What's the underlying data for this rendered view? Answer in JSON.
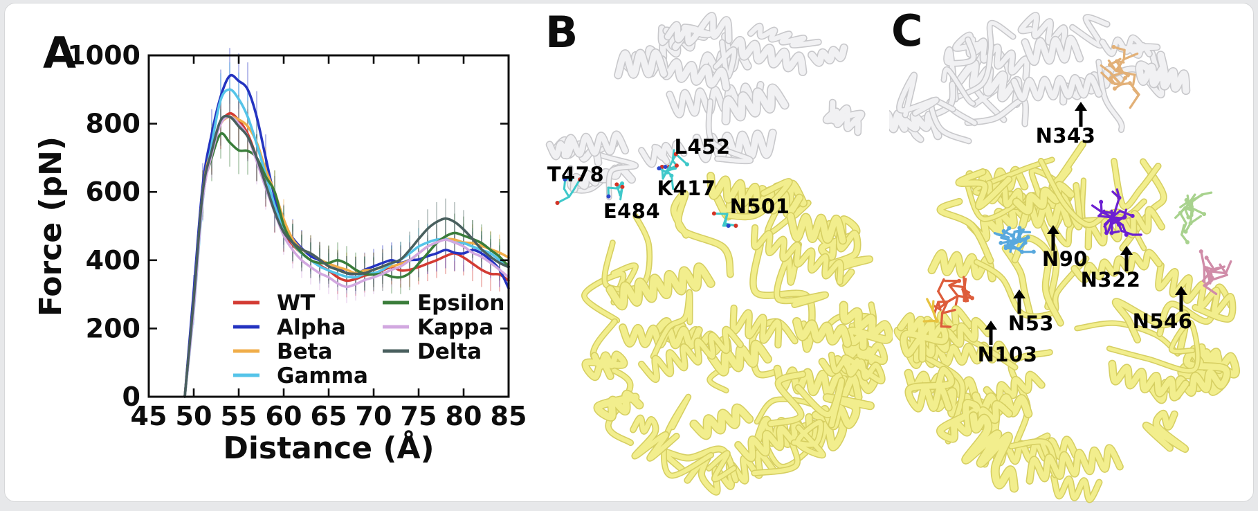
{
  "panel_a": {
    "label": "A"
  },
  "panel_b": {
    "label": "B",
    "residues": [
      "T478",
      "E484",
      "K417",
      "L452",
      "N501"
    ]
  },
  "panel_c": {
    "label": "C",
    "glycosylation_sites": [
      "N343",
      "N90",
      "N322",
      "N53",
      "N546",
      "N103"
    ]
  },
  "chart_data": {
    "type": "line",
    "title": "",
    "xlabel": "Distance (Å)",
    "ylabel": "Force (pN)",
    "xlim": [
      45,
      85
    ],
    "ylim": [
      0,
      1000
    ],
    "xticks": [
      45,
      50,
      55,
      60,
      65,
      70,
      75,
      80,
      85
    ],
    "yticks": [
      0,
      200,
      400,
      600,
      800,
      1000
    ],
    "grid": false,
    "error_bars_shown": true,
    "legend_position": "inside lower center, two columns, no frame",
    "legend_columns": [
      [
        "WT",
        "Alpha",
        "Beta",
        "Gamma"
      ],
      [
        "Epsilon",
        "Kappa",
        "Delta"
      ]
    ],
    "x": [
      49,
      50,
      51,
      52,
      53,
      54,
      55,
      56,
      57,
      58,
      59,
      60,
      61,
      62,
      63,
      64,
      65,
      66,
      67,
      68,
      69,
      70,
      71,
      72,
      73,
      74,
      75,
      76,
      77,
      78,
      79,
      80,
      81,
      82,
      83,
      84,
      85
    ],
    "series": [
      {
        "name": "WT",
        "color": "#d33b33",
        "values": [
          0,
          290,
          580,
          720,
          800,
          830,
          810,
          770,
          700,
          620,
          540,
          480,
          445,
          420,
          400,
          385,
          370,
          350,
          340,
          345,
          355,
          360,
          370,
          380,
          370,
          372,
          380,
          390,
          400,
          412,
          420,
          408,
          390,
          372,
          360,
          358,
          340
        ]
      },
      {
        "name": "Alpha",
        "color": "#2433c0",
        "values": [
          0,
          310,
          620,
          770,
          880,
          940,
          925,
          900,
          820,
          700,
          585,
          505,
          465,
          435,
          412,
          400,
          390,
          378,
          362,
          360,
          372,
          382,
          392,
          400,
          392,
          400,
          402,
          412,
          420,
          430,
          422,
          420,
          430,
          420,
          400,
          372,
          318
        ]
      },
      {
        "name": "Beta",
        "color": "#f0ad49",
        "values": [
          0,
          280,
          600,
          730,
          800,
          820,
          812,
          792,
          745,
          665,
          600,
          520,
          462,
          432,
          420,
          402,
          390,
          380,
          372,
          362,
          370,
          372,
          380,
          382,
          390,
          400,
          420,
          440,
          452,
          462,
          460,
          452,
          450,
          442,
          432,
          422,
          408
        ]
      },
      {
        "name": "Gamma",
        "color": "#55c4e9",
        "values": [
          0,
          255,
          575,
          740,
          870,
          900,
          872,
          820,
          740,
          650,
          560,
          492,
          450,
          420,
          400,
          382,
          370,
          360,
          352,
          350,
          360,
          362,
          372,
          390,
          402,
          420,
          440,
          452,
          460,
          462,
          452,
          450,
          440,
          430,
          420,
          400,
          380
        ]
      },
      {
        "name": "Epsilon",
        "color": "#3a7d3a",
        "values": [
          0,
          270,
          590,
          700,
          770,
          745,
          722,
          720,
          700,
          645,
          600,
          502,
          452,
          422,
          400,
          392,
          392,
          400,
          390,
          372,
          360,
          358,
          360,
          352,
          350,
          362,
          390,
          420,
          450,
          470,
          480,
          472,
          462,
          450,
          430,
          410,
          382
        ]
      },
      {
        "name": "Kappa",
        "color": "#d2a8e0",
        "values": [
          0,
          260,
          580,
          710,
          800,
          820,
          800,
          762,
          690,
          612,
          540,
          472,
          430,
          400,
          380,
          362,
          350,
          332,
          322,
          330,
          342,
          350,
          360,
          372,
          382,
          400,
          420,
          440,
          452,
          460,
          452,
          440,
          422,
          410,
          392,
          372,
          350
        ]
      },
      {
        "name": "Delta",
        "color": "#495f5e",
        "values": [
          0,
          285,
          600,
          720,
          810,
          820,
          792,
          762,
          700,
          622,
          542,
          482,
          452,
          432,
          420,
          402,
          382,
          372,
          362,
          360,
          362,
          372,
          382,
          392,
          402,
          430,
          462,
          492,
          512,
          522,
          512,
          490,
          462,
          432,
          410,
          392,
          380
        ]
      }
    ]
  }
}
